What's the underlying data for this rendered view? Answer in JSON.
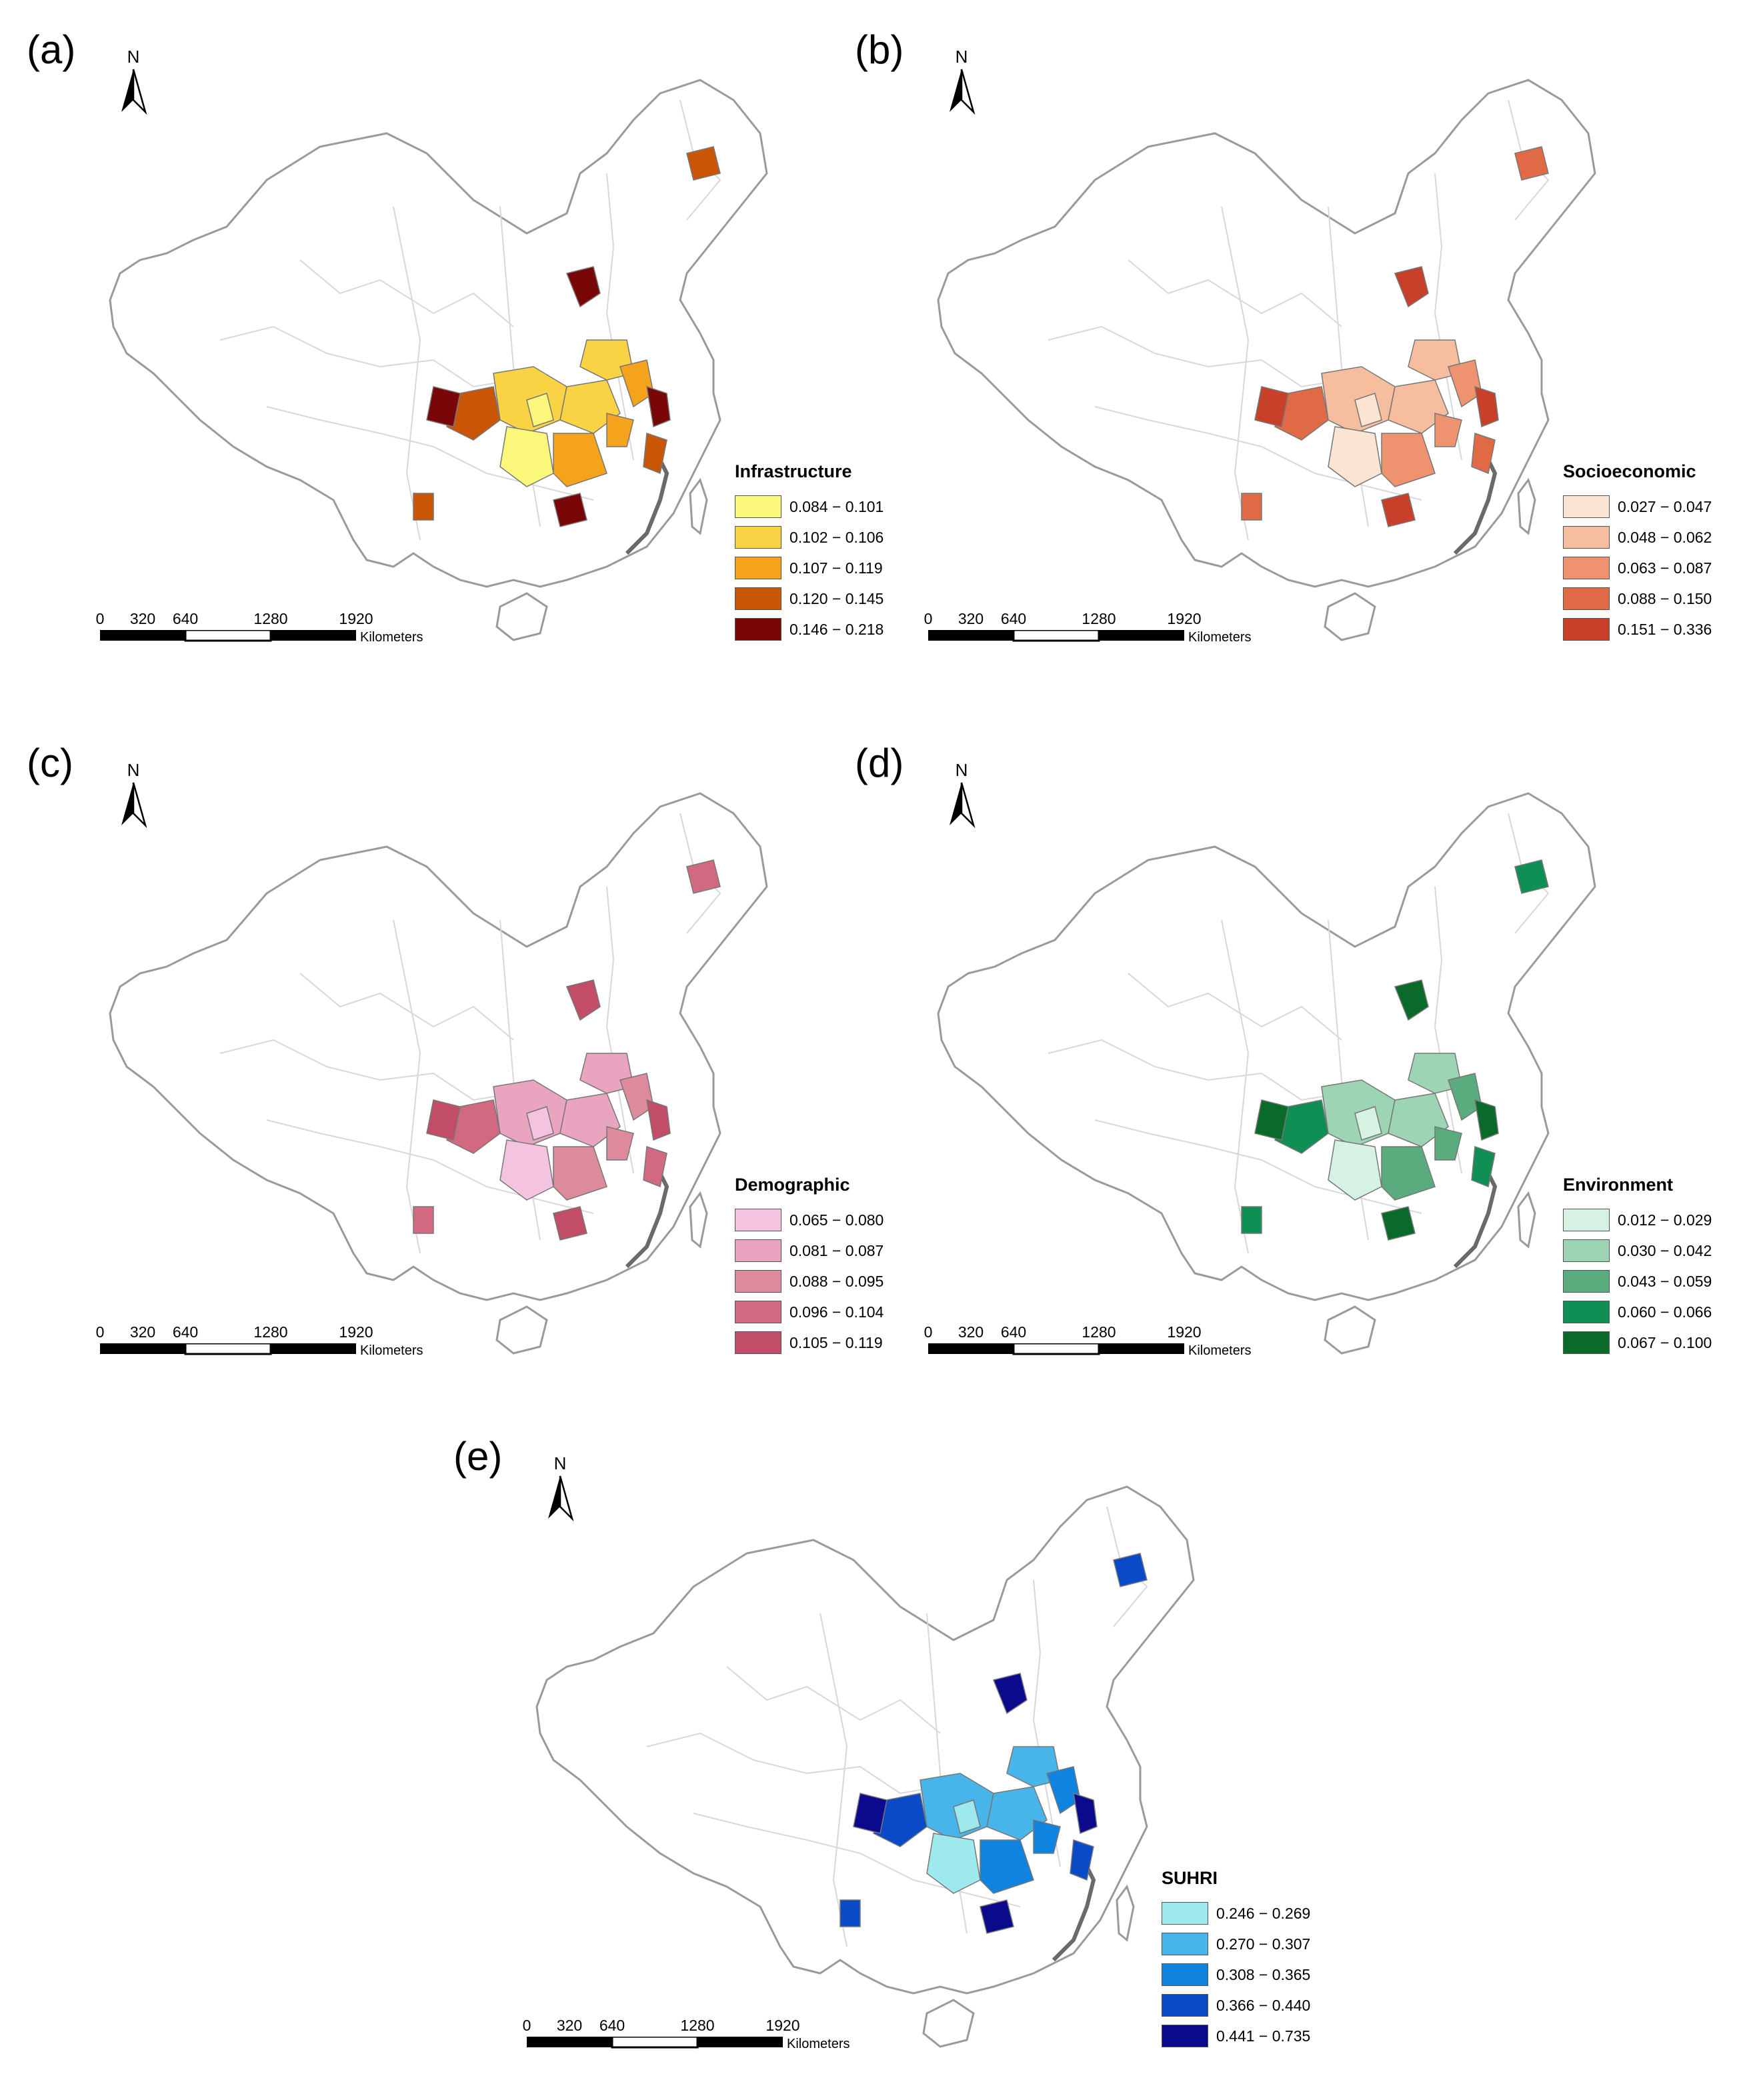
{
  "scale": {
    "ticks": [
      "0",
      "320",
      "640",
      "1280",
      "1920"
    ],
    "units": "Kilometers"
  },
  "north_label": "N",
  "panels": [
    {
      "id": "a",
      "label": "(a)",
      "legend_title": "Infrastructure",
      "classes": [
        {
          "range": "0.084 − 0.101",
          "color": "#fbf77a"
        },
        {
          "range": "0.102 − 0.106",
          "color": "#f9d343"
        },
        {
          "range": "0.107 − 0.119",
          "color": "#f4a31b"
        },
        {
          "range": "0.120 − 0.145",
          "color": "#c95607"
        },
        {
          "range": "0.146 − 0.218",
          "color": "#7a0707"
        }
      ]
    },
    {
      "id": "b",
      "label": "(b)",
      "legend_title": "Socioeconomic",
      "classes": [
        {
          "range": "0.027 − 0.047",
          "color": "#fbe4d2"
        },
        {
          "range": "0.048 − 0.062",
          "color": "#f6bd9f"
        },
        {
          "range": "0.063 − 0.087",
          "color": "#ee9270"
        },
        {
          "range": "0.088 − 0.150",
          "color": "#e06a46"
        },
        {
          "range": "0.151 − 0.336",
          "color": "#c8402a"
        }
      ]
    },
    {
      "id": "c",
      "label": "(c)",
      "legend_title": "Demographic",
      "classes": [
        {
          "range": "0.065 − 0.080",
          "color": "#f4c3e0"
        },
        {
          "range": "0.081 − 0.087",
          "color": "#e9a4bf"
        },
        {
          "range": "0.088 − 0.095",
          "color": "#de8a9d"
        },
        {
          "range": "0.096 − 0.104",
          "color": "#d16a80"
        },
        {
          "range": "0.105 − 0.119",
          "color": "#c24d66"
        }
      ]
    },
    {
      "id": "d",
      "label": "(d)",
      "legend_title": "Environment",
      "classes": [
        {
          "range": "0.012 − 0.029",
          "color": "#d6f2e2"
        },
        {
          "range": "0.030 − 0.042",
          "color": "#9dd4b4"
        },
        {
          "range": "0.043 − 0.059",
          "color": "#5aab7e"
        },
        {
          "range": "0.060 − 0.066",
          "color": "#0f8f54"
        },
        {
          "range": "0.067 − 0.100",
          "color": "#0a6a2a"
        }
      ]
    },
    {
      "id": "e",
      "label": "(e)",
      "legend_title": "SUHRI",
      "classes": [
        {
          "range": "0.246 − 0.269",
          "color": "#9de9ee"
        },
        {
          "range": "0.270 − 0.307",
          "color": "#48b5ea"
        },
        {
          "range": "0.308 − 0.365",
          "color": "#0e84e0"
        },
        {
          "range": "0.366 − 0.440",
          "color": "#0a4ac6"
        },
        {
          "range": "0.441 − 0.735",
          "color": "#0b0a8c"
        }
      ]
    }
  ]
}
